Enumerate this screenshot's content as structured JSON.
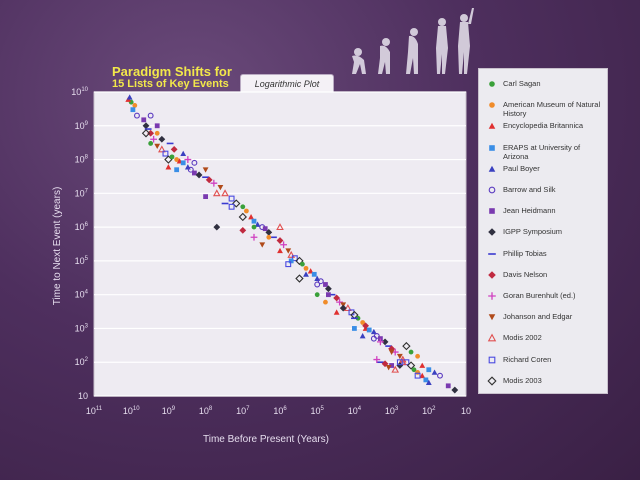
{
  "title": {
    "line1": "Paradigm Shifts for",
    "line2": "15 Lists of Key Events"
  },
  "plot_tab_label": "Logarithmic Plot",
  "icon": "human-evolution-silhouettes-icon",
  "chart_data": {
    "type": "scatter",
    "xlabel": "Time Before Present (Years)",
    "ylabel": "Time to Next Event (years)",
    "x_scale": "log-reversed",
    "y_scale": "log",
    "xlim": [
      100000000000,
      10
    ],
    "ylim": [
      10,
      10000000000
    ],
    "x_ticks": [
      {
        "base": "10",
        "exp": "11"
      },
      {
        "base": "10",
        "exp": "10"
      },
      {
        "base": "10",
        "exp": "9"
      },
      {
        "base": "10",
        "exp": "8"
      },
      {
        "base": "10",
        "exp": "7"
      },
      {
        "base": "10",
        "exp": "6"
      },
      {
        "base": "10",
        "exp": "5"
      },
      {
        "base": "10",
        "exp": "4"
      },
      {
        "base": "10",
        "exp": "3"
      },
      {
        "base": "10",
        "exp": "2"
      },
      {
        "base": "10",
        "exp": ""
      }
    ],
    "y_ticks": [
      {
        "base": "10",
        "exp": ""
      },
      {
        "base": "10",
        "exp": "2"
      },
      {
        "base": "10",
        "exp": "3"
      },
      {
        "base": "10",
        "exp": "4"
      },
      {
        "base": "10",
        "exp": "5"
      },
      {
        "base": "10",
        "exp": "6"
      },
      {
        "base": "10",
        "exp": "7"
      },
      {
        "base": "10",
        "exp": "8"
      },
      {
        "base": "10",
        "exp": "9"
      },
      {
        "base": "10",
        "exp": "10"
      }
    ],
    "grid": true,
    "legend_position": "right",
    "series": [
      {
        "name": "Carl Sagan",
        "marker": "circle",
        "color": "#3aa03a"
      },
      {
        "name": "American Museum of Natural History",
        "marker": "circle",
        "color": "#f08c2a"
      },
      {
        "name": "Encyclopedia Britannica",
        "marker": "triangle",
        "color": "#e03030"
      },
      {
        "name": "ERAPS at University of Arizona",
        "marker": "square",
        "color": "#3a8ee6"
      },
      {
        "name": "Paul Boyer",
        "marker": "triangle",
        "color": "#3a40c0"
      },
      {
        "name": "Barrow and Silk",
        "marker": "circle-open",
        "color": "#5a3ac0"
      },
      {
        "name": "Jean Heidmann",
        "marker": "square",
        "color": "#7a3ab0"
      },
      {
        "name": "IGPP Symposium",
        "marker": "diamond",
        "color": "#303040"
      },
      {
        "name": "Phillip Tobias",
        "marker": "dash",
        "color": "#3a3ad0"
      },
      {
        "name": "Davis Nelson",
        "marker": "diamond",
        "color": "#c02a40"
      },
      {
        "name": "Goran Burenhult (ed.)",
        "marker": "plus",
        "color": "#d040c0"
      },
      {
        "name": "Johanson and Edgar",
        "marker": "triangle-down",
        "color": "#b04a1a"
      },
      {
        "name": "Modis 2002",
        "marker": "triangle-open",
        "color": "#e05050"
      },
      {
        "name": "Richard Coren",
        "marker": "square-open",
        "color": "#4a4ae0"
      },
      {
        "name": "Modis 2003",
        "marker": "diamond-open",
        "color": "#303030"
      }
    ],
    "points": [
      [
        10000000000.0,
        5000000000.0
      ],
      [
        8000000000.0,
        4000000000.0
      ],
      [
        12000000000.0,
        6000000000.0
      ],
      [
        9000000000.0,
        3000000000.0
      ],
      [
        11000000000.0,
        7000000000.0
      ],
      [
        7000000000.0,
        2000000000.0
      ],
      [
        4600000000.0,
        1500000000.0
      ],
      [
        4000000000.0,
        1000000000.0
      ],
      [
        3500000000.0,
        800000000.0
      ],
      [
        3000000000.0,
        600000000.0
      ],
      [
        2500000000.0,
        400000000.0
      ],
      [
        2000000000.0,
        250000000.0
      ],
      [
        1500000000.0,
        200000000.0
      ],
      [
        1200000000.0,
        150000000.0
      ],
      [
        1000000000.0,
        100000000.0
      ],
      [
        800000000.0,
        120000000.0
      ],
      [
        600000000.0,
        100000000.0
      ],
      [
        500000000.0,
        90000000.0
      ],
      [
        400000000.0,
        80000000.0
      ],
      [
        300000000.0,
        60000000.0
      ],
      [
        250000000.0,
        50000000.0
      ],
      [
        200000000.0,
        40000000.0
      ],
      [
        150000000.0,
        35000000.0
      ],
      [
        100000000.0,
        30000000.0
      ],
      [
        80000000.0,
        25000000.0
      ],
      [
        60000000.0,
        20000000.0
      ],
      [
        40000000.0,
        15000000.0
      ],
      [
        30000000.0,
        10000000.0
      ],
      [
        20000000.0,
        7000000.0
      ],
      [
        15000000.0,
        5000000.0
      ],
      [
        10000000.0,
        4000000.0
      ],
      [
        8000000.0,
        3000000.0
      ],
      [
        6000000.0,
        2000000.0
      ],
      [
        5000000.0,
        1500000.0
      ],
      [
        4000000.0,
        1200000.0
      ],
      [
        3000000.0,
        1000000.0
      ],
      [
        2500000.0,
        900000.0
      ],
      [
        2000000.0,
        700000.0
      ],
      [
        1500000.0,
        500000.0
      ],
      [
        1000000.0,
        400000.0
      ],
      [
        800000.0,
        300000.0
      ],
      [
        600000.0,
        200000.0
      ],
      [
        500000.0,
        150000.0
      ],
      [
        400000.0,
        120000.0
      ],
      [
        300000.0,
        100000.0
      ],
      [
        250000.0,
        80000.0
      ],
      [
        200000.0,
        60000.0
      ],
      [
        150000.0,
        50000.0
      ],
      [
        120000.0,
        40000.0
      ],
      [
        100000.0,
        30000.0
      ],
      [
        80000.0,
        25000.0
      ],
      [
        60000.0,
        20000.0
      ],
      [
        50000.0,
        15000.0
      ],
      [
        40000.0,
        10000.0
      ],
      [
        30000.0,
        8000.0
      ],
      [
        25000.0,
        6000.0
      ],
      [
        20000.0,
        5000.0
      ],
      [
        15000.0,
        4000.0
      ],
      [
        12000.0,
        3000.0
      ],
      [
        10000.0,
        2500.0
      ],
      [
        8000.0,
        2000.0
      ],
      [
        6000.0,
        1500.0
      ],
      [
        5000.0,
        1000.0
      ],
      [
        4000.0,
        900.0
      ],
      [
        3000.0,
        800.0
      ],
      [
        2500.0,
        600.0
      ],
      [
        2000.0,
        500.0
      ],
      [
        1500.0,
        400.0
      ],
      [
        1200.0,
        300.0
      ],
      [
        1000.0,
        250.0
      ],
      [
        800.0,
        200.0
      ],
      [
        600.0,
        150.0
      ],
      [
        500.0,
        120.0
      ],
      [
        400.0,
        100.0
      ],
      [
        300.0,
        80.0
      ],
      [
        250.0,
        60.0
      ],
      [
        200.0,
        50.0
      ],
      [
        150.0,
        40.0
      ],
      [
        120.0,
        30.0
      ],
      [
        100.0,
        25.0
      ],
      [
        3000000000.0,
        2000000000.0
      ],
      [
        2000000000.0,
        1000000000.0
      ],
      [
        1500000000.0,
        400000000.0
      ],
      [
        900000000.0,
        300000000.0
      ],
      [
        700000000.0,
        200000000.0
      ],
      [
        300000000.0,
        100000000.0
      ],
      [
        100000000.0,
        50000000.0
      ],
      [
        50000000.0,
        10000000.0
      ],
      [
        20000000.0,
        4000000.0
      ],
      [
        10000000.0,
        2000000.0
      ],
      [
        5000000.0,
        1000000.0
      ],
      [
        2000000.0,
        500000.0
      ],
      [
        1000000.0,
        200000.0
      ],
      [
        500000.0,
        100000.0
      ],
      [
        200000.0,
        40000.0
      ],
      [
        100000.0,
        20000.0
      ],
      [
        50000.0,
        10000.0
      ],
      [
        20000.0,
        4000.0
      ],
      [
        10000.0,
        2000.0
      ],
      [
        5000.0,
        1200.0
      ],
      [
        2000.0,
        400.0
      ],
      [
        1000.0,
        200.0
      ],
      [
        500.0,
        100.0
      ],
      [
        200.0,
        40.0
      ],
      [
        4000000000.0,
        600000000.0
      ],
      [
        3000000000.0,
        300000000.0
      ],
      [
        2000000000.0,
        600000000.0
      ],
      [
        1000000000.0,
        60000000.0
      ],
      [
        600000000.0,
        50000000.0
      ],
      [
        400000000.0,
        150000000.0
      ],
      [
        200000000.0,
        80000000.0
      ],
      [
        100000000.0,
        8000000.0
      ],
      [
        50000000.0,
        1000000.0
      ],
      [
        30000000.0,
        5000000.0
      ],
      [
        10000000.0,
        800000.0
      ],
      [
        5000000.0,
        500000.0
      ],
      [
        3000000.0,
        300000.0
      ],
      [
        1000000.0,
        1000000.0
      ],
      [
        600000.0,
        80000.0
      ],
      [
        300000.0,
        30000.0
      ],
      [
        100000.0,
        10000.0
      ],
      [
        60000.0,
        6000.0
      ],
      [
        30000.0,
        3000.0
      ],
      [
        10000.0,
        1000.0
      ],
      [
        6000.0,
        600.0
      ],
      [
        3000.0,
        500.0
      ],
      [
        1000.0,
        80.0
      ],
      [
        600.0,
        80.0
      ],
      [
        2000.0,
        100.0
      ],
      [
        1500.0,
        90.0
      ],
      [
        2500.0,
        120.0
      ],
      [
        1200.0,
        70.0
      ],
      [
        800.0,
        60.0
      ],
      [
        600.0,
        100.0
      ],
      [
        400.0,
        300.0
      ],
      [
        300.0,
        200.0
      ],
      [
        200.0,
        150.0
      ],
      [
        150.0,
        80.0
      ],
      [
        100.0,
        60.0
      ],
      [
        70.0,
        50.0
      ],
      [
        50.0,
        40.0
      ],
      [
        30.0,
        20.0
      ],
      [
        20.0,
        15.0
      ]
    ]
  },
  "legend": {
    "items": [
      {
        "label": "Carl Sagan"
      },
      {
        "label": "American Museum of Natural History"
      },
      {
        "label": "Encyclopedia Britannica"
      },
      {
        "label": "ERAPS at University of Arizona"
      },
      {
        "label": "Paul Boyer"
      },
      {
        "label": "Barrow and Silk"
      },
      {
        "label": "Jean Heidmann"
      },
      {
        "label": "IGPP Symposium"
      },
      {
        "label": "Phillip Tobias"
      },
      {
        "label": "Davis Nelson"
      },
      {
        "label": "Goran Burenhult (ed.)"
      },
      {
        "label": "Johanson and Edgar"
      },
      {
        "label": "Modis 2002"
      },
      {
        "label": "Richard Coren"
      },
      {
        "label": "Modis 2003"
      }
    ]
  }
}
